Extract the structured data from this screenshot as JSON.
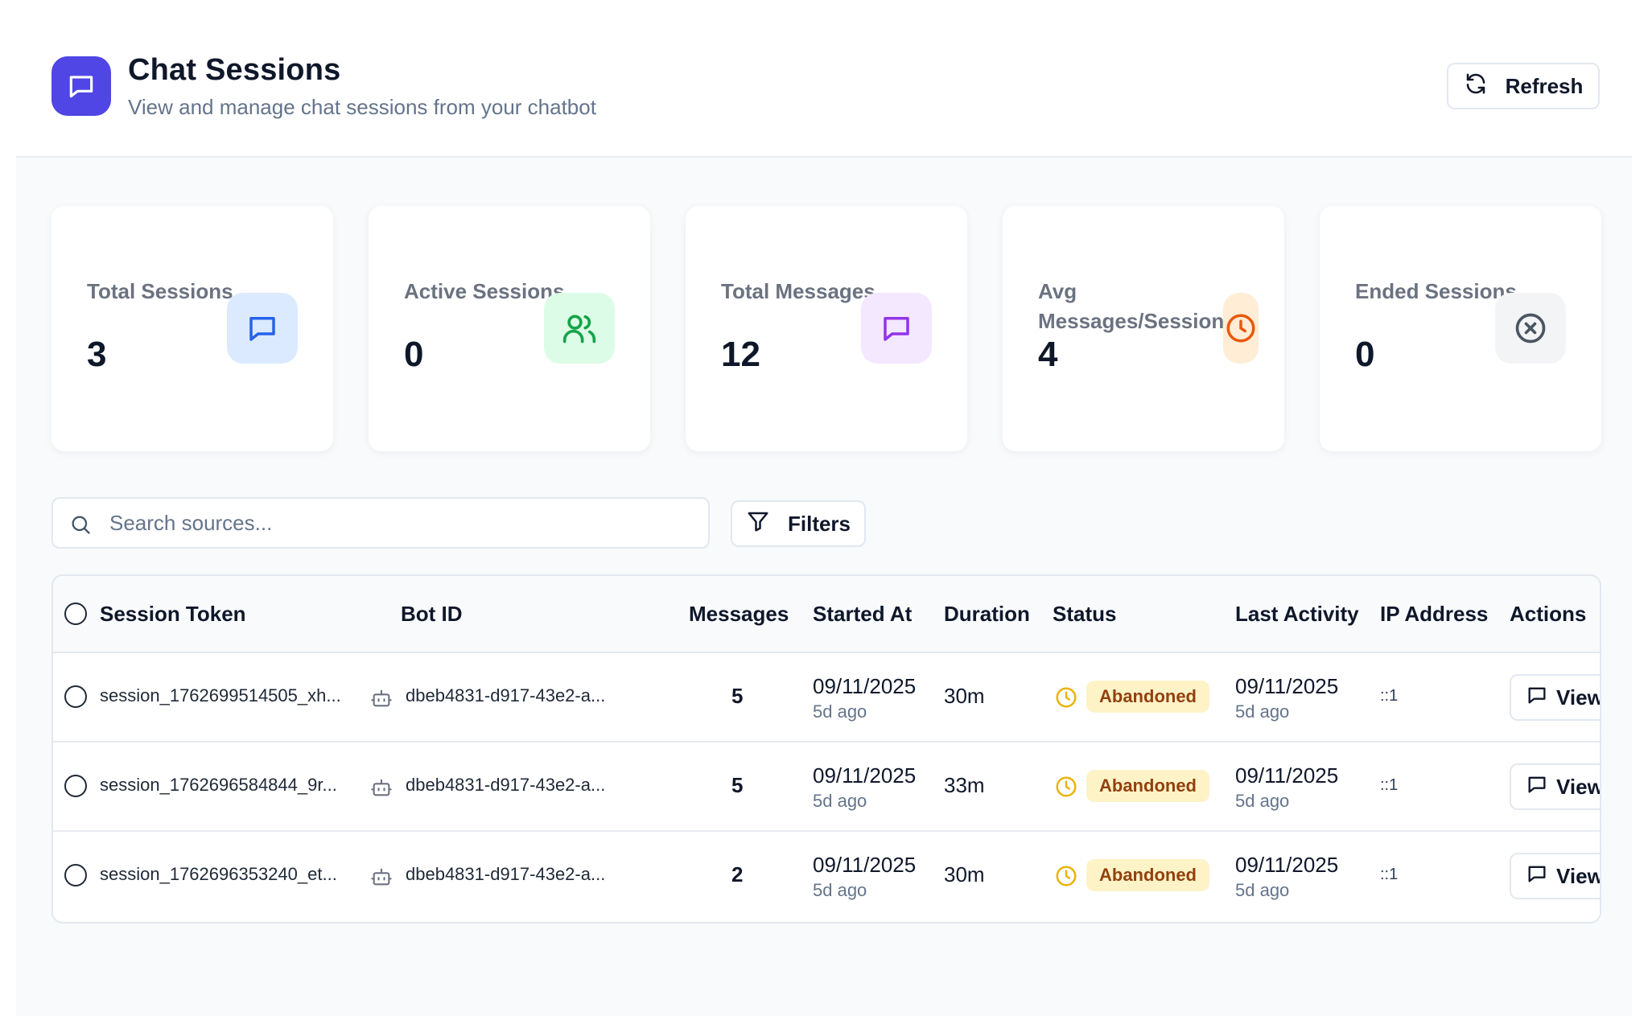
{
  "header": {
    "title": "Chat Sessions",
    "subtitle": "View and manage chat sessions from your chatbot",
    "refresh_label": "Refresh"
  },
  "stats": [
    {
      "label": "Total Sessions",
      "value": "3",
      "icon": "message-square-icon",
      "color": "#2563eb",
      "bg": "#dbeafe"
    },
    {
      "label": "Active Sessions",
      "value": "0",
      "icon": "users-icon",
      "color": "#16a34a",
      "bg": "#dcfce7"
    },
    {
      "label": "Total Messages",
      "value": "12",
      "icon": "message-square-icon",
      "color": "#9333ea",
      "bg": "#f3e8ff"
    },
    {
      "label": "Avg Messages/Session",
      "value": "4",
      "icon": "clock-icon",
      "color": "#ea580c",
      "bg": "#ffedd5"
    },
    {
      "label": "Ended Sessions",
      "value": "0",
      "icon": "x-circle-icon",
      "color": "#4b5563",
      "bg": "#f3f4f6"
    }
  ],
  "search": {
    "placeholder": "Search sources..."
  },
  "filters_label": "Filters",
  "table": {
    "columns": [
      "Session Token",
      "Bot ID",
      "Messages",
      "Started At",
      "Duration",
      "Status",
      "Last Activity",
      "IP Address",
      "Actions"
    ],
    "rows": [
      {
        "token": "session_1762699514505_xh...",
        "bot_id": "dbeb4831-d917-43e2-a...",
        "messages": "5",
        "started": "09/11/2025",
        "started_ago": "5d ago",
        "duration": "30m",
        "status": "Abandoned",
        "last_activity": "09/11/2025",
        "last_ago": "5d ago",
        "ip": "::1",
        "action": "View"
      },
      {
        "token": "session_1762696584844_9r...",
        "bot_id": "dbeb4831-d917-43e2-a...",
        "messages": "5",
        "started": "09/11/2025",
        "started_ago": "5d ago",
        "duration": "33m",
        "status": "Abandoned",
        "last_activity": "09/11/2025",
        "last_ago": "5d ago",
        "ip": "::1",
        "action": "View"
      },
      {
        "token": "session_1762696353240_et...",
        "bot_id": "dbeb4831-d917-43e2-a...",
        "messages": "2",
        "started": "09/11/2025",
        "started_ago": "5d ago",
        "duration": "30m",
        "status": "Abandoned",
        "last_activity": "09/11/2025",
        "last_ago": "5d ago",
        "ip": "::1",
        "action": "View"
      }
    ]
  },
  "colors": {
    "brand": "#4f46e5",
    "status_abandoned_bg": "#fef3c7",
    "status_abandoned_text": "#92400e",
    "status_icon": "#eab308"
  }
}
